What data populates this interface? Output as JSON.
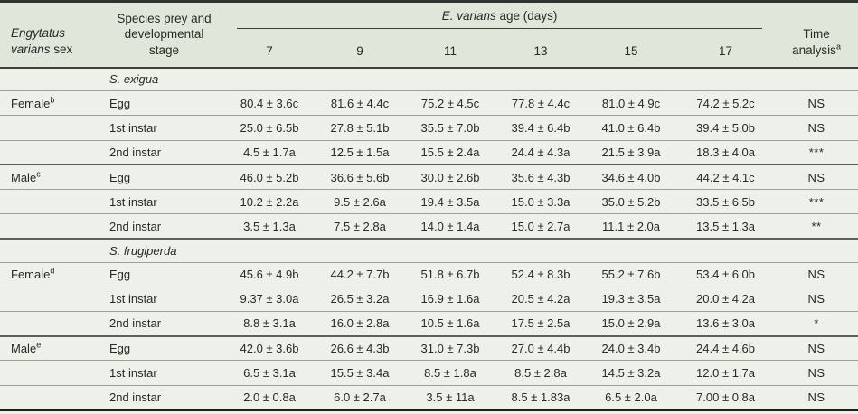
{
  "colors": {
    "header_bg": "#e0e6da",
    "body_bg": "#eef1ea",
    "row_line": "#9aa296",
    "group_line": "#5c625a",
    "frame_line": "#30342f",
    "text": "#272a26"
  },
  "header": {
    "sex_col": {
      "italic": "Engytatus varians",
      "rest": "sex"
    },
    "species_col": "Species prey and developmental stage",
    "age_span": {
      "italic": "E. varians",
      "rest": "age (days)"
    },
    "ages": [
      "7",
      "9",
      "11",
      "13",
      "15",
      "17"
    ],
    "time_col": {
      "label": "Time analysis",
      "sup": "a"
    }
  },
  "rows": [
    {
      "type": "section",
      "species": "S. exigua"
    },
    {
      "sex": "Female",
      "sup": "b",
      "stage": "Egg",
      "v": [
        "80.4 ± 3.6c",
        "81.6 ± 4.4c",
        "75.2 ± 4.5c",
        "77.8 ± 4.4c",
        "81.0 ± 4.9c",
        "74.2 ± 5.2c"
      ],
      "time": "NS"
    },
    {
      "sex": "",
      "sup": "",
      "stage": "1st instar",
      "v": [
        "25.0 ± 6.5b",
        "27.8 ± 5.1b",
        "35.5 ± 7.0b",
        "39.4 ± 6.4b",
        "41.0 ± 6.4b",
        "39.4 ± 5.0b"
      ],
      "time": "NS"
    },
    {
      "sex": "",
      "sup": "",
      "stage": "2nd instar",
      "v": [
        "4.5 ± 1.7a",
        "12.5 ± 1.5a",
        "15.5 ± 2.4a",
        "24.4 ± 4.3a",
        "21.5 ± 3.9a",
        "18.3 ± 4.0a"
      ],
      "time": "***"
    },
    {
      "sex": "Male",
      "sup": "c",
      "stage": "Egg",
      "v": [
        "46.0 ± 5.2b",
        "36.6 ± 5.6b",
        "30.0 ± 2.6b",
        "35.6 ± 4.3b",
        "34.6 ± 4.0b",
        "44.2 ± 4.1c"
      ],
      "time": "NS"
    },
    {
      "sex": "",
      "sup": "",
      "stage": "1st instar",
      "v": [
        "10.2 ± 2.2a",
        "9.5 ± 2.6a",
        "19.4 ± 3.5a",
        "15.0 ± 3.3a",
        "35.0 ± 5.2b",
        "33.5 ± 6.5b"
      ],
      "time": "***"
    },
    {
      "sex": "",
      "sup": "",
      "stage": "2nd instar",
      "v": [
        "3.5 ± 1.3a",
        "7.5 ± 2.8a",
        "14.0 ± 1.4a",
        "15.0 ± 2.7a",
        "11.1 ± 2.0a",
        "13.5 ± 1.3a"
      ],
      "time": "**"
    },
    {
      "type": "section",
      "species": "S. frugiperda"
    },
    {
      "sex": "Female",
      "sup": "d",
      "stage": "Egg",
      "v": [
        "45.6 ± 4.9b",
        "44.2 ± 7.7b",
        "51.8 ± 6.7b",
        "52.4 ± 8.3b",
        "55.2 ± 7.6b",
        "53.4 ± 6.0b"
      ],
      "time": "NS"
    },
    {
      "sex": "",
      "sup": "",
      "stage": "1st instar",
      "v": [
        "9.37 ± 3.0a",
        "26.5 ± 3.2a",
        "16.9 ± 1.6a",
        "20.5 ± 4.2a",
        "19.3 ± 3.5a",
        "20.0 ± 4.2a"
      ],
      "time": "NS"
    },
    {
      "sex": "",
      "sup": "",
      "stage": "2nd instar",
      "v": [
        "8.8 ± 3.1a",
        "16.0 ± 2.8a",
        "10.5 ± 1.6a",
        "17.5 ± 2.5a",
        "15.0 ± 2.9a",
        "13.6 ± 3.0a"
      ],
      "time": "*"
    },
    {
      "sex": "Male",
      "sup": "e",
      "stage": "Egg",
      "v": [
        "42.0 ± 3.6b",
        "26.6 ± 4.3b",
        "31.0 ± 7.3b",
        "27.0 ± 4.4b",
        "24.0 ± 3.4b",
        "24.4 ± 4.6b"
      ],
      "time": "NS"
    },
    {
      "sex": "",
      "sup": "",
      "stage": "1st instar",
      "v": [
        "6.5 ± 3.1a",
        "15.5 ± 3.4a",
        "8.5 ± 1.8a",
        "8.5 ± 2.8a",
        "14.5 ± 3.2a",
        "12.0 ± 1.7a"
      ],
      "time": "NS"
    },
    {
      "sex": "",
      "sup": "",
      "stage": "2nd instar",
      "v": [
        "2.0 ± 0.8a",
        "6.0 ± 2.7a",
        "3.5 ± 11a",
        "8.5 ± 1.83a",
        "6.5 ± 2.0a",
        "7.00 ± 0.8a"
      ],
      "time": "NS"
    }
  ]
}
